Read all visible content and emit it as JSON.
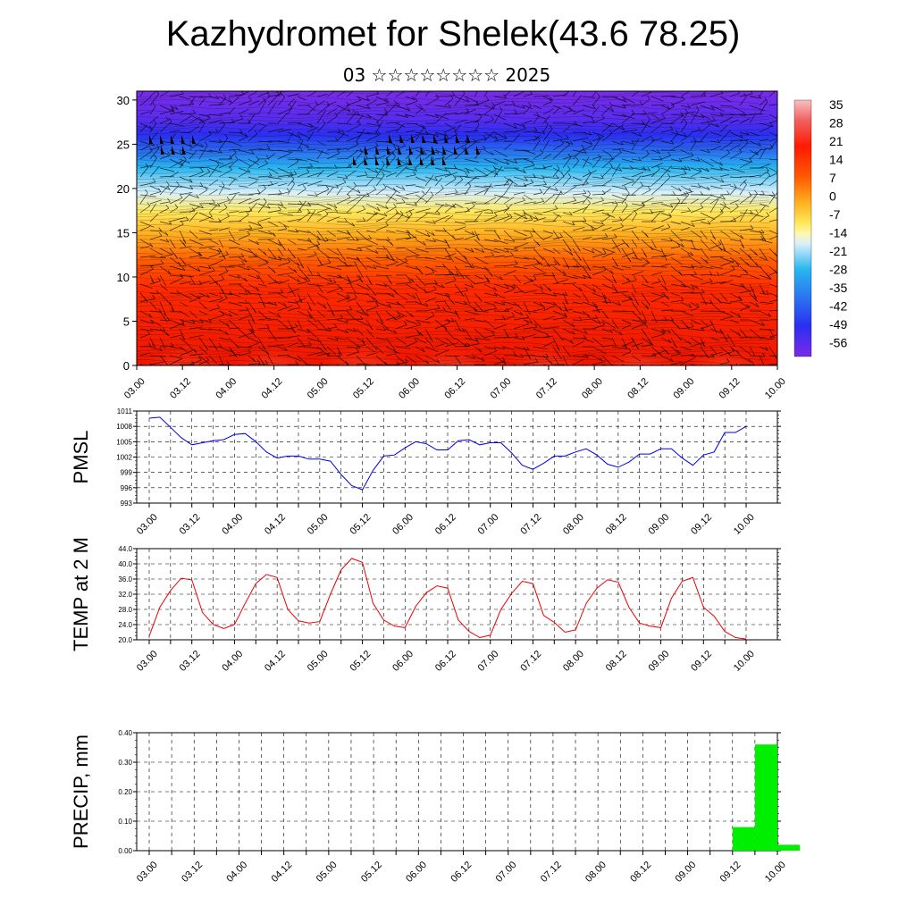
{
  "title": "Kazhydromet for Shelek(43.6 78.25)",
  "subtitle": "03 ☆☆☆☆☆☆☆☆ 2025",
  "time_labels": [
    "03.00",
    "03.12",
    "04.00",
    "04.12",
    "05.00",
    "05.12",
    "06.00",
    "06.12",
    "07.00",
    "07.12",
    "08.00",
    "08.12",
    "09.00",
    "09.12",
    "10.00"
  ],
  "chart_data": [
    {
      "type": "heatmap",
      "name": "temperature cross-section with wind barbs",
      "ylim": [
        0,
        31
      ],
      "yticks": [
        0,
        5,
        10,
        15,
        20,
        25,
        30
      ],
      "colorbar_labels": [
        "35",
        "28",
        "21",
        "14",
        "7",
        "0",
        "-7",
        "-14",
        "-21",
        "-28",
        "-35",
        "-42",
        "-49",
        "-56"
      ],
      "colors": {
        "top": "#7a2be8",
        "upper": "#2a2ff0",
        "mid": "#29b6f0",
        "pale": "#d9f0fa",
        "yellow": "#ffe85a",
        "orange": "#ff9a1a",
        "red": "#ff2a00",
        "warm": "#f7a0a0"
      }
    },
    {
      "type": "line",
      "ylabel": "PMSL",
      "ylim": [
        993,
        1011
      ],
      "yticks": [
        993,
        996,
        999,
        1002,
        1005,
        1008,
        1011
      ],
      "color": "#0000ee",
      "values": [
        1009.6,
        1009.8,
        1007.8,
        1005.8,
        1004.4,
        1004.8,
        1005.2,
        1005.4,
        1006.4,
        1006.6,
        1005.0,
        1003.0,
        1001.8,
        1002.2,
        1002.2,
        1001.6,
        1001.6,
        1001.2,
        998.6,
        996.4,
        995.6,
        999.4,
        1002.2,
        1002.4,
        1003.8,
        1005.0,
        1004.6,
        1003.4,
        1003.4,
        1005.2,
        1005.4,
        1004.4,
        1004.8,
        1004.8,
        1002.8,
        1000.4,
        999.6,
        1000.8,
        1002.2,
        1002.2,
        1003.0,
        1003.6,
        1002.4,
        1000.6,
        1000.0,
        1001.0,
        1002.6,
        1002.6,
        1003.6,
        1003.6,
        1001.8,
        1000.4,
        1002.4,
        1003.0,
        1006.8,
        1006.8,
        1008.0
      ]
    },
    {
      "type": "line",
      "ylabel": "TEMP at 2 M",
      "ylim": [
        20,
        44
      ],
      "yticks": [
        "20.0",
        "24.0",
        "28.0",
        "32.0",
        "36.0",
        "40.0",
        "44.0"
      ],
      "color": "#ee0000",
      "values": [
        21.0,
        28.6,
        33.0,
        36.2,
        35.8,
        27.2,
        24.0,
        23.0,
        24.0,
        29.6,
        34.8,
        37.2,
        36.4,
        28.0,
        25.0,
        24.4,
        24.8,
        32.0,
        38.4,
        41.4,
        40.4,
        29.6,
        25.2,
        23.6,
        23.2,
        28.8,
        32.4,
        34.2,
        33.6,
        25.2,
        22.2,
        20.6,
        21.2,
        28.0,
        32.2,
        35.4,
        34.8,
        26.4,
        24.6,
        22.0,
        22.6,
        29.6,
        33.6,
        35.8,
        35.2,
        28.6,
        24.4,
        23.6,
        23.2,
        31.0,
        35.4,
        36.4,
        28.6,
        26.2,
        22.2,
        20.6,
        20.2
      ]
    },
    {
      "type": "bar",
      "ylabel": "PRECIP, mm",
      "ylim": [
        0,
        0.4
      ],
      "yticks": [
        "0.00",
        "0.10",
        "0.20",
        "0.30",
        "0.40"
      ],
      "color": "#00ee00",
      "bars": [
        {
          "from": 52,
          "to": 54,
          "value": 0.08
        },
        {
          "from": 54,
          "to": 56,
          "value": 0.36
        },
        {
          "from": 56,
          "to": 58,
          "value": 0.02
        }
      ]
    }
  ]
}
